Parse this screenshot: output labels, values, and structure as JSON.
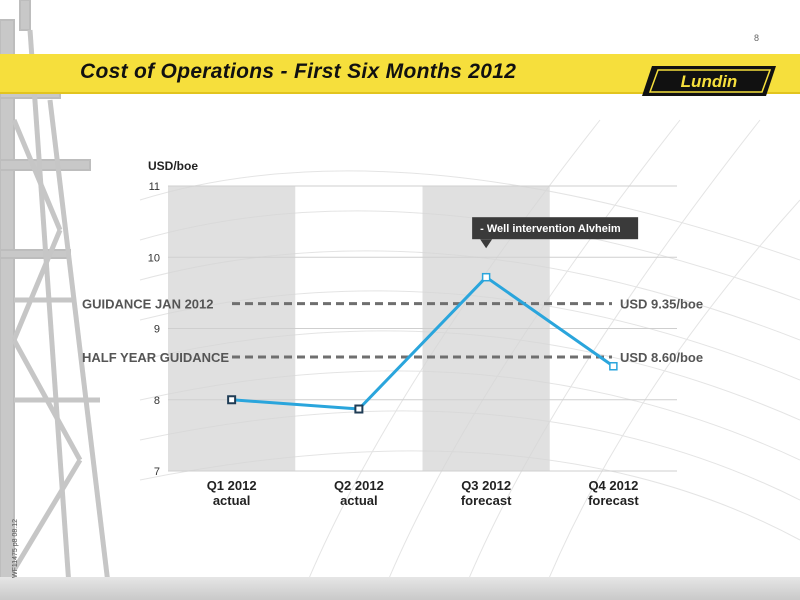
{
  "page_number": "8",
  "header": {
    "title": "Cost of Operations - First Six Months 2012"
  },
  "logo": {
    "text": "Lundin"
  },
  "side_code": "WF11475 p8 08.12",
  "chart_data": {
    "type": "line",
    "ylabel": "USD/boe",
    "ylim": [
      7,
      11
    ],
    "yticks": [
      7,
      8,
      9,
      10,
      11
    ],
    "categories": [
      {
        "top": "Q1 2012",
        "bottom": "actual"
      },
      {
        "top": "Q2 2012",
        "bottom": "actual"
      },
      {
        "top": "Q3 2012",
        "bottom": "forecast"
      },
      {
        "top": "Q4 2012",
        "bottom": "forecast"
      }
    ],
    "values": [
      8.0,
      7.87,
      9.72,
      8.47
    ],
    "point_styles": [
      "filled",
      "filled",
      "hollow",
      "hollow"
    ],
    "line_color": "#2aa5dc",
    "marker_dark": "#1f3c55",
    "shaded_bands": [
      0,
      2
    ],
    "reference_lines": [
      {
        "label": "GUIDANCE  JAN 2012",
        "value": 9.35,
        "value_label": "USD 9.35/boe"
      },
      {
        "label": "HALF YEAR GUIDANCE",
        "value": 8.6,
        "value_label": "USD 8.60/boe"
      }
    ],
    "annotation": {
      "text": "- Well intervention Alvheim",
      "index": 2
    }
  }
}
